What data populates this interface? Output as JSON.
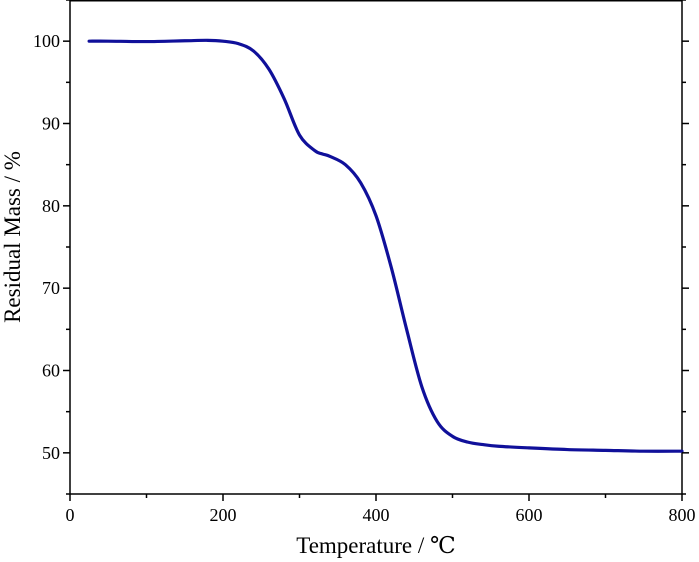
{
  "chart_data": {
    "type": "line",
    "title": "",
    "xlabel": "Temperature / ℃",
    "ylabel": "Residual Mass / %",
    "xlim": [
      0,
      800
    ],
    "ylim": [
      45,
      105
    ],
    "xticks": [
      0,
      200,
      400,
      600,
      800
    ],
    "xtick_labels": [
      "0",
      "200",
      "400",
      "600",
      "800"
    ],
    "yticks": [
      50,
      60,
      70,
      80,
      90,
      100
    ],
    "ytick_labels": [
      "50",
      "60",
      "70",
      "80",
      "90",
      "100"
    ],
    "grid": false,
    "legend": "none",
    "colors": {
      "series": "#10109a",
      "axes": "#000000"
    },
    "series": [
      {
        "x": [
          25,
          50,
          100,
          150,
          180,
          200,
          220,
          240,
          260,
          280,
          300,
          320,
          330,
          340,
          360,
          380,
          400,
          420,
          440,
          460,
          480,
          500,
          520,
          540,
          560,
          600,
          650,
          700,
          750,
          800
        ],
        "values": [
          100.0,
          100.0,
          99.95,
          100.05,
          100.1,
          100.0,
          99.7,
          98.8,
          96.6,
          93.0,
          88.6,
          86.7,
          86.3,
          86.0,
          85.0,
          82.8,
          78.8,
          72.5,
          65.0,
          58.0,
          53.8,
          52.0,
          51.3,
          51.0,
          50.8,
          50.6,
          50.4,
          50.3,
          50.2,
          50.2
        ]
      }
    ]
  }
}
